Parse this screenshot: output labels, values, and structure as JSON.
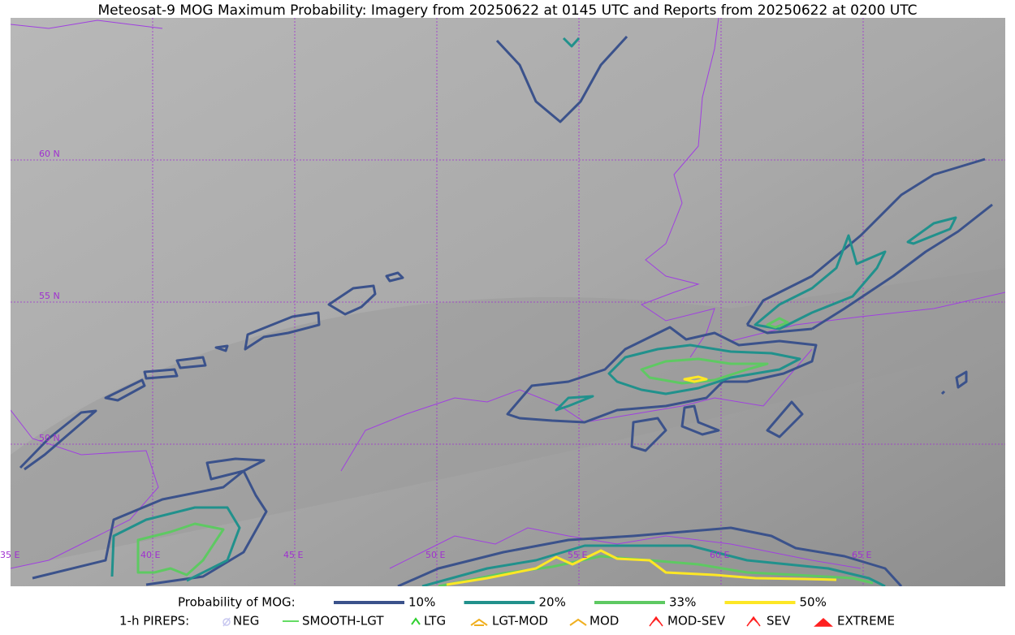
{
  "header": {
    "title": "Meteosat-9 MOG Maximum Probability: Imagery from 20250622 at 0145 UTC and Reports from 20250622 at 0200 UTC"
  },
  "map": {
    "lat_labels": [
      "60 N",
      "55 N",
      "50 N"
    ],
    "lon_labels": [
      "35 E",
      "40 E",
      "45 E",
      "50 E",
      "55 E",
      "60 E",
      "65 E"
    ]
  },
  "legend": {
    "title": "Probability of MOG:",
    "items": [
      {
        "label": "10%",
        "color": "#3b528b"
      },
      {
        "label": "20%",
        "color": "#21918c"
      },
      {
        "label": "33%",
        "color": "#5ec962"
      },
      {
        "label": "50%",
        "color": "#fde725"
      }
    ]
  },
  "pireps": {
    "title": "1-h PIREPS:",
    "items": [
      "NEG",
      "SMOOTH-LGT",
      "LTG",
      "LGT-MOD",
      "MOD",
      "MOD-SEV",
      "SEV",
      "EXTREME"
    ]
  }
}
